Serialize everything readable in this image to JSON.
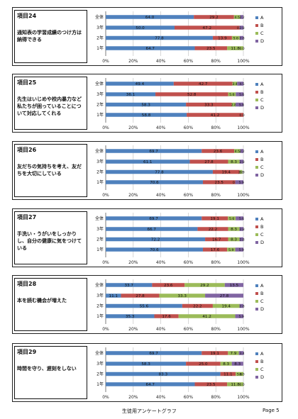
{
  "colors": {
    "A": "#4f81bd",
    "B": "#c0504d",
    "C": "#9bbb59",
    "D": "#8064a2"
  },
  "legend": [
    "A",
    "B",
    "C",
    "D"
  ],
  "x_ticks": [
    "0%",
    "20%",
    "40%",
    "60%",
    "80%",
    "100%"
  ],
  "rows": [
    "全体",
    "3年",
    "2年",
    "1年"
  ],
  "footer": {
    "title": "生徒用アンケートグラフ",
    "page": "Page 5"
  },
  "chart_data": [
    {
      "type": "bar",
      "stacked": true,
      "orientation": "horizontal",
      "item": "項目24",
      "question": "通知表の学習成績のつけ方は納得できる",
      "categories": [
        "全体",
        "3年",
        "2年",
        "1年"
      ],
      "series": [
        {
          "name": "A",
          "values": [
            64.0,
            50.0,
            77.8,
            64.7
          ]
        },
        {
          "name": "B",
          "values": [
            29.2,
            47.2,
            13.9,
            23.5
          ]
        },
        {
          "name": "C",
          "values": [
            4.5,
            0.0,
            5.6,
            11.8
          ]
        },
        {
          "name": "D",
          "values": [
            2.2,
            2.8,
            2.8,
            0.0
          ]
        }
      ],
      "labels": [
        [
          "64.0",
          "29.2",
          "4.5",
          "2.2"
        ],
        [
          "50.0",
          "47.2",
          "0.0",
          "2.8"
        ],
        [
          "77.8",
          "13.9",
          "5.6",
          "2.8"
        ],
        [
          "64.7",
          "23.5",
          "11.8",
          "0.0"
        ]
      ],
      "xlim": [
        0,
        100
      ]
    },
    {
      "type": "bar",
      "stacked": true,
      "orientation": "horizontal",
      "item": "項目25",
      "question": "先生はいじめや校内暴力など私たちが困っていることについて対応してくれる",
      "categories": [
        "全体",
        "3年",
        "2年",
        "1年"
      ],
      "series": [
        {
          "name": "A",
          "values": [
            49.4,
            36.1,
            58.3,
            58.8
          ]
        },
        {
          "name": "B",
          "values": [
            42.7,
            52.8,
            33.3,
            41.2
          ]
        },
        {
          "name": "C",
          "values": [
            3.4,
            5.6,
            2.8,
            0.0
          ]
        },
        {
          "name": "D",
          "values": [
            4.5,
            5.6,
            5.6,
            0.0
          ]
        }
      ],
      "labels": [
        [
          "49.4",
          "42.7",
          "3.4",
          "4.5"
        ],
        [
          "36.1",
          "52.8",
          "5.6",
          "5.6"
        ],
        [
          "58.3",
          "33.3",
          "2.8",
          "5.6"
        ],
        [
          "58.8",
          "41.2",
          "0.0",
          ""
        ]
      ],
      "xlim": [
        0,
        100
      ]
    },
    {
      "type": "bar",
      "stacked": true,
      "orientation": "horizontal",
      "item": "項目26",
      "question": "友だちの気持ちを考え、友だちを大切にしている",
      "categories": [
        "全体",
        "3年",
        "2年",
        "1年"
      ],
      "series": [
        {
          "name": "A",
          "values": [
            69.7,
            61.1,
            77.8,
            70.6
          ]
        },
        {
          "name": "B",
          "values": [
            23.6,
            27.8,
            19.4,
            23.5
          ]
        },
        {
          "name": "C",
          "values": [
            4.5,
            8.3,
            2.0,
            0.0
          ]
        },
        {
          "name": "D",
          "values": [
            2.2,
            2.8,
            0.0,
            5.9
          ]
        }
      ],
      "labels": [
        [
          "69.7",
          "23.6",
          "4.5",
          "2.2"
        ],
        [
          "61.1",
          "27.8",
          "8.3",
          "2.8"
        ],
        [
          "77.8",
          "19.4",
          "2.0",
          "0.0"
        ],
        [
          "70.6",
          "23.5",
          "0.0",
          "5.9"
        ]
      ],
      "xlim": [
        0,
        100
      ]
    },
    {
      "type": "bar",
      "stacked": true,
      "orientation": "horizontal",
      "item": "項目27",
      "question": "手洗い・うがいをしっかりし、自分の健康に気をつけている",
      "categories": [
        "全体",
        "3年",
        "2年",
        "1年"
      ],
      "series": [
        {
          "name": "A",
          "values": [
            69.7,
            66.7,
            72.2,
            70.6
          ]
        },
        {
          "name": "B",
          "values": [
            19.1,
            22.2,
            16.7,
            17.6
          ]
        },
        {
          "name": "C",
          "values": [
            5.6,
            8.3,
            8.3,
            5.9
          ]
        },
        {
          "name": "D",
          "values": [
            5.6,
            2.8,
            2.8,
            5.9
          ]
        }
      ],
      "labels": [
        [
          "69.7",
          "19.1",
          "5.6",
          "5.6"
        ],
        [
          "66.7",
          "22.2",
          "8.3",
          "2.8"
        ],
        [
          "72.2",
          "16.7",
          "8.3",
          "2.8"
        ],
        [
          "70.6",
          "17.6",
          "5.9",
          "5.9"
        ]
      ],
      "xlim": [
        0,
        100
      ]
    },
    {
      "type": "bar",
      "stacked": true,
      "orientation": "horizontal",
      "item": "項目28",
      "question": "本を読む機会が増えた",
      "categories": [
        "全体",
        "3年",
        "2年",
        "1年"
      ],
      "series": [
        {
          "name": "A",
          "values": [
            33.7,
            11.1,
            55.6,
            35.3
          ]
        },
        {
          "name": "B",
          "values": [
            23.6,
            27.8,
            22.2,
            17.6
          ]
        },
        {
          "name": "C",
          "values": [
            29.2,
            33.3,
            19.4,
            41.2
          ]
        },
        {
          "name": "D",
          "values": [
            13.5,
            27.8,
            2.8,
            5.9
          ]
        }
      ],
      "labels": [
        [
          "33.7",
          "23.6",
          "29.2",
          "13.5"
        ],
        [
          "11.1",
          "27.8",
          "33.3",
          "27.8"
        ],
        [
          "55.6",
          "22.2",
          "19.4",
          "2.8"
        ],
        [
          "35.3",
          "17.6",
          "41.2",
          "5.9"
        ]
      ],
      "xlim": [
        0,
        100
      ]
    },
    {
      "type": "bar",
      "stacked": true,
      "orientation": "horizontal",
      "item": "項目29",
      "question": "時間を守り、遅刻をしない",
      "categories": [
        "全体",
        "3年",
        "2年",
        "1年"
      ],
      "series": [
        {
          "name": "A",
          "values": [
            69.7,
            58.3,
            83.3,
            64.7
          ]
        },
        {
          "name": "B",
          "values": [
            19.1,
            25.0,
            11.1,
            23.5
          ]
        },
        {
          "name": "C",
          "values": [
            7.9,
            8.3,
            5.6,
            11.8
          ]
        },
        {
          "name": "D",
          "values": [
            3.4,
            8.3,
            0.0,
            0.0
          ]
        }
      ],
      "labels": [
        [
          "69.7",
          "19.1",
          "7.9",
          "3.4"
        ],
        [
          "58.3",
          "25.0",
          "8.3",
          "8.3"
        ],
        [
          "83.3",
          "11.1",
          "5.6",
          "0.0"
        ],
        [
          "64.7",
          "23.5",
          "11.8",
          "0.0"
        ]
      ],
      "xlim": [
        0,
        100
      ]
    }
  ]
}
